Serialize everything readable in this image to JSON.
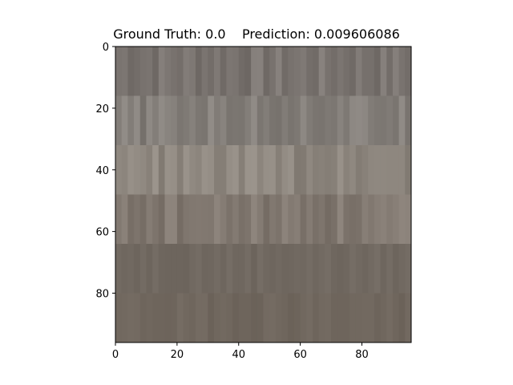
{
  "title": {
    "ground_truth_label": "Ground Truth: 0.0",
    "prediction_label": "Prediction: 0.009606086"
  },
  "axes": {
    "x_ticks": [
      0,
      20,
      40,
      60,
      80
    ],
    "y_ticks": [
      0,
      20,
      40,
      60,
      80
    ],
    "x_range": [
      0,
      96
    ],
    "y_range": [
      0,
      96
    ]
  },
  "image": {
    "description_colors": {
      "band1": "#77706c",
      "band2": "#837d78",
      "band3": "#8d857d",
      "band4": "#7f766e",
      "band5": "#706860",
      "band6": "#6f665d"
    }
  }
}
